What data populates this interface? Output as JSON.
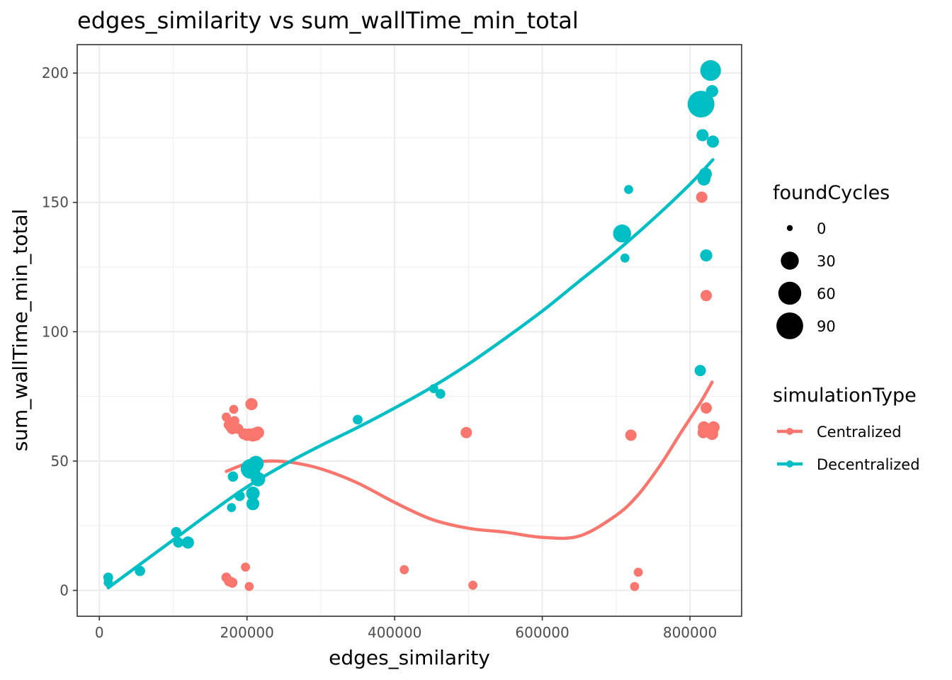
{
  "chart_data": {
    "type": "scatter",
    "title": "edges_similarity  vs  sum_wallTime_min_total",
    "xlabel": "edges_similarity",
    "ylabel": "sum_wallTime_min_total",
    "xlim": [
      -30000,
      870000
    ],
    "ylim": [
      -10,
      211
    ],
    "xticks": [
      0,
      200000,
      400000,
      600000,
      800000
    ],
    "xtick_labels": [
      "0",
      "200000",
      "400000",
      "600000",
      "800000"
    ],
    "yticks": [
      0,
      50,
      100,
      150,
      200
    ],
    "ytick_labels": [
      "0",
      "50",
      "100",
      "150",
      "200"
    ],
    "grid": true,
    "legend_position": "right",
    "size_legend": {
      "title": "foundCycles",
      "entries": [
        {
          "label": "0",
          "value": 0
        },
        {
          "label": "30",
          "value": 30
        },
        {
          "label": "60",
          "value": 60
        },
        {
          "label": "90",
          "value": 90
        }
      ]
    },
    "color_legend": {
      "title": "simulationType",
      "entries": [
        {
          "label": "Centralized",
          "color": "#F8766D"
        },
        {
          "label": "Decentralized",
          "color": "#00BFC4"
        }
      ]
    },
    "series": [
      {
        "name": "Centralized",
        "color": "#F8766D",
        "points": [
          [
            172000,
            67,
            2
          ],
          [
            175000,
            64,
            3
          ],
          [
            178000,
            63,
            4
          ],
          [
            180000,
            62.5,
            5
          ],
          [
            182000,
            70,
            2
          ],
          [
            183000,
            65.5,
            3
          ],
          [
            185000,
            63,
            3
          ],
          [
            188000,
            62.5,
            4
          ],
          [
            196000,
            60.5,
            6
          ],
          [
            200000,
            60,
            6
          ],
          [
            203000,
            60.5,
            5
          ],
          [
            206000,
            72,
            8
          ],
          [
            208000,
            60,
            10
          ],
          [
            210000,
            60.5,
            8
          ],
          [
            212000,
            60,
            6
          ],
          [
            215000,
            61,
            8
          ],
          [
            172000,
            5,
            3
          ],
          [
            176000,
            3.5,
            4
          ],
          [
            180000,
            3,
            4
          ],
          [
            198000,
            9,
            2
          ],
          [
            203000,
            1.5,
            2
          ],
          [
            413000,
            8,
            2
          ],
          [
            497000,
            61,
            6
          ],
          [
            506000,
            2,
            2
          ],
          [
            720000,
            60,
            6
          ],
          [
            725000,
            1.5,
            2
          ],
          [
            730000,
            7,
            2
          ],
          [
            816000,
            152,
            6
          ],
          [
            818000,
            61,
            6
          ],
          [
            819000,
            63,
            8
          ],
          [
            822000,
            114,
            6
          ],
          [
            822000,
            70.5,
            6
          ],
          [
            825000,
            61,
            4
          ],
          [
            830000,
            60.5,
            8
          ],
          [
            832000,
            63,
            8
          ]
        ]
      },
      {
        "name": "Decentralized",
        "color": "#00BFC4",
        "points": [
          [
            12000,
            5,
            3
          ],
          [
            12000,
            3,
            2
          ],
          [
            55000,
            7.5,
            4
          ],
          [
            104000,
            22.5,
            4
          ],
          [
            107000,
            18.5,
            4
          ],
          [
            120000,
            18.5,
            8
          ],
          [
            179000,
            32,
            2
          ],
          [
            181000,
            44,
            4
          ],
          [
            190000,
            36.5,
            4
          ],
          [
            205000,
            47,
            40
          ],
          [
            208000,
            37.5,
            12
          ],
          [
            208000,
            33.5,
            10
          ],
          [
            212000,
            49,
            20
          ],
          [
            215000,
            43,
            15
          ],
          [
            350000,
            66,
            3
          ],
          [
            453000,
            78,
            2
          ],
          [
            462000,
            76,
            3
          ],
          [
            708000,
            138,
            30
          ],
          [
            712000,
            128.5,
            2
          ],
          [
            717000,
            155,
            2
          ],
          [
            814000,
            85,
            6
          ],
          [
            817000,
            176,
            8
          ],
          [
            819000,
            159,
            10
          ],
          [
            821000,
            161,
            10
          ],
          [
            822000,
            129.5,
            8
          ],
          [
            815000,
            188,
            90
          ],
          [
            828000,
            201,
            45
          ],
          [
            830000,
            193,
            8
          ],
          [
            831000,
            173.5,
            8
          ]
        ]
      }
    ],
    "trend_lines": [
      {
        "name": "Centralized",
        "color": "#F8766D",
        "x": [
          172000,
          200000,
          230000,
          260000,
          300000,
          350000,
          400000,
          450000,
          500000,
          550000,
          600000,
          650000,
          700000,
          730000,
          760000,
          790000,
          815000,
          830000
        ],
        "y": [
          46,
          49,
          50,
          49.5,
          47,
          41.5,
          34,
          27.5,
          24,
          22.5,
          20.5,
          21,
          29,
          37,
          48.5,
          62,
          73,
          80.5
        ]
      },
      {
        "name": "Decentralized",
        "color": "#00BFC4",
        "x": [
          12000,
          50000,
          100000,
          150000,
          200000,
          250000,
          300000,
          350000,
          400000,
          450000,
          500000,
          550000,
          600000,
          650000,
          700000,
          750000,
          800000,
          831000
        ],
        "y": [
          1,
          9,
          19.5,
          30,
          40,
          48.5,
          56,
          63,
          70.5,
          78.5,
          87.5,
          97.5,
          108,
          119.5,
          131,
          143.5,
          157,
          166.5
        ]
      }
    ]
  }
}
